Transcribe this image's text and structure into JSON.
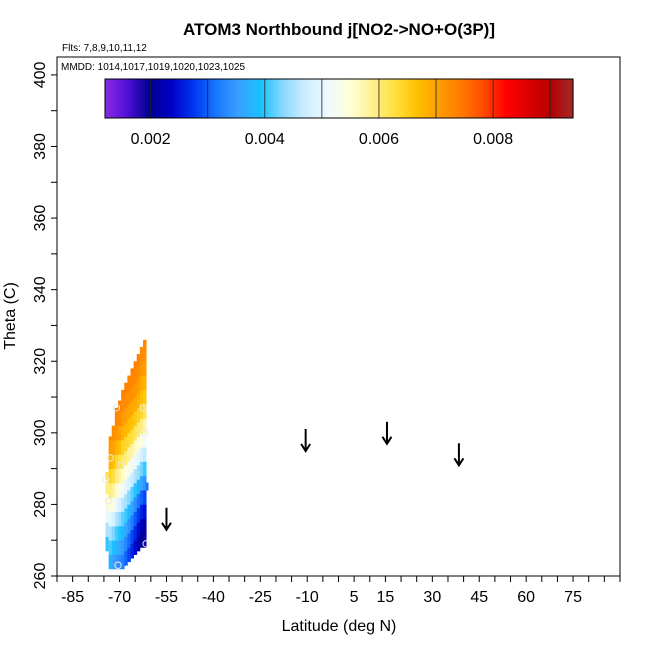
{
  "chart_data": {
    "type": "heatmap",
    "title": "ATOM3 Northbound j[NO2->NO+O(3P)]",
    "flights_note": "Flts: 7,8,9,10,11,12",
    "dates_note": "MMDD: 1014,1017,1019,1020,1023,1025",
    "xlabel": "Latitude (deg N)",
    "ylabel": "Theta (C)",
    "xlim": [
      -90,
      90
    ],
    "ylim": [
      260,
      405
    ],
    "x_ticks": [
      -85,
      -70,
      -55,
      -40,
      -25,
      -10,
      5,
      15,
      30,
      45,
      60,
      75
    ],
    "x_tick_labels": [
      "-85",
      "-70",
      "-55",
      "-40",
      "-25",
      "-10",
      "5",
      "15",
      "30",
      "45",
      "60",
      "75"
    ],
    "y_ticks": [
      260,
      280,
      300,
      320,
      340,
      360,
      380,
      400
    ],
    "y_tick_labels": [
      "260",
      "280",
      "300",
      "320",
      "340",
      "360",
      "380",
      "400"
    ],
    "colorbar": {
      "range": [
        0.0012,
        0.0094
      ],
      "tick_values": [
        0.002,
        0.004,
        0.006,
        0.008
      ],
      "tick_labels": [
        "0.002",
        "0.004",
        "0.006",
        "0.008"
      ],
      "colors": [
        "#8a2be2",
        "#5010d8",
        "#000090",
        "#0000c8",
        "#0038f0",
        "#1a78ff",
        "#3aa0ff",
        "#19c2ff",
        "#8ad8ff",
        "#cdeeff",
        "#eefaff",
        "#ffffd8",
        "#fff090",
        "#ffe040",
        "#ffc000",
        "#ff9c00",
        "#ff7a00",
        "#ff4a00",
        "#ff0000",
        "#dc0000",
        "#b40000",
        "#a52a2a"
      ]
    },
    "column_profiles": [
      {
        "lat": -74.0,
        "bottom": 267,
        "top": 289,
        "values": [
          0.0038,
          0.0042,
          0.0047,
          0.0052,
          0.0056,
          0.006,
          0.0064
        ]
      },
      {
        "lat": -73.0,
        "bottom": 262,
        "top": 299,
        "values": [
          0.0036,
          0.004,
          0.0044,
          0.005,
          0.0055,
          0.0061,
          0.0066,
          0.007,
          0.0072
        ]
      },
      {
        "lat": -72.0,
        "bottom": 262,
        "top": 302,
        "values": [
          0.0034,
          0.0038,
          0.0043,
          0.005,
          0.0056,
          0.0062,
          0.0067,
          0.0071,
          0.0073
        ]
      },
      {
        "lat": -71.0,
        "bottom": 262,
        "top": 307,
        "values": [
          0.0033,
          0.0037,
          0.0042,
          0.0049,
          0.0056,
          0.0062,
          0.0068,
          0.0072,
          0.0074
        ]
      },
      {
        "lat": -70.0,
        "bottom": 262,
        "top": 309,
        "values": [
          0.0032,
          0.0036,
          0.0041,
          0.0048,
          0.0055,
          0.0062,
          0.0068,
          0.0072,
          0.0074
        ]
      },
      {
        "lat": -69.0,
        "bottom": 262,
        "top": 312,
        "values": [
          0.0031,
          0.0035,
          0.004,
          0.0047,
          0.0055,
          0.0062,
          0.0068,
          0.0072,
          0.0074
        ]
      },
      {
        "lat": -68.0,
        "bottom": 263,
        "top": 314,
        "values": [
          0.0029,
          0.0033,
          0.0039,
          0.0046,
          0.0054,
          0.0062,
          0.0068,
          0.0072,
          0.0074
        ]
      },
      {
        "lat": -67.0,
        "bottom": 264,
        "top": 316,
        "values": [
          0.0027,
          0.0031,
          0.0037,
          0.0045,
          0.0053,
          0.0062,
          0.0068,
          0.0072,
          0.0074
        ]
      },
      {
        "lat": -66.0,
        "bottom": 265,
        "top": 318,
        "values": [
          0.0025,
          0.0029,
          0.0035,
          0.0044,
          0.0053,
          0.0062,
          0.0068,
          0.0072,
          0.0074
        ]
      },
      {
        "lat": -65.0,
        "bottom": 266,
        "top": 320,
        "values": [
          0.0023,
          0.0027,
          0.0033,
          0.0043,
          0.0052,
          0.0061,
          0.0068,
          0.0072,
          0.0074
        ]
      },
      {
        "lat": -64.0,
        "bottom": 267,
        "top": 322,
        "values": [
          0.0021,
          0.0025,
          0.0031,
          0.0042,
          0.0052,
          0.0061,
          0.0068,
          0.0072,
          0.0074
        ]
      },
      {
        "lat": -63.0,
        "bottom": 268,
        "top": 324,
        "values": [
          0.0019,
          0.0023,
          0.003,
          0.0041,
          0.0051,
          0.0061,
          0.0067,
          0.0071,
          0.0073
        ]
      },
      {
        "lat": -62.0,
        "bottom": 268,
        "top": 326,
        "values": [
          0.0018,
          0.0022,
          0.0029,
          0.004,
          0.0051,
          0.006,
          0.0067,
          0.0071,
          0.0073
        ]
      }
    ],
    "markers": [
      {
        "lat": -74.5,
        "theta": 287
      },
      {
        "lat": -73.0,
        "theta": 293
      },
      {
        "lat": -69.5,
        "theta": 291
      },
      {
        "lat": -71.0,
        "theta": 307
      },
      {
        "lat": -62.5,
        "theta": 307
      },
      {
        "lat": -62.0,
        "theta": 300
      },
      {
        "lat": -73.5,
        "theta": 281
      },
      {
        "lat": -70.5,
        "theta": 263
      },
      {
        "lat": -61.5,
        "theta": 269
      }
    ],
    "blue_tick": {
      "lat": -61.2,
      "theta": 285
    },
    "arrows": [
      {
        "lat": -55.0,
        "theta": 276
      },
      {
        "lat": -10.5,
        "theta": 298
      },
      {
        "lat": 15.5,
        "theta": 300
      },
      {
        "lat": 38.5,
        "theta": 294
      }
    ]
  }
}
